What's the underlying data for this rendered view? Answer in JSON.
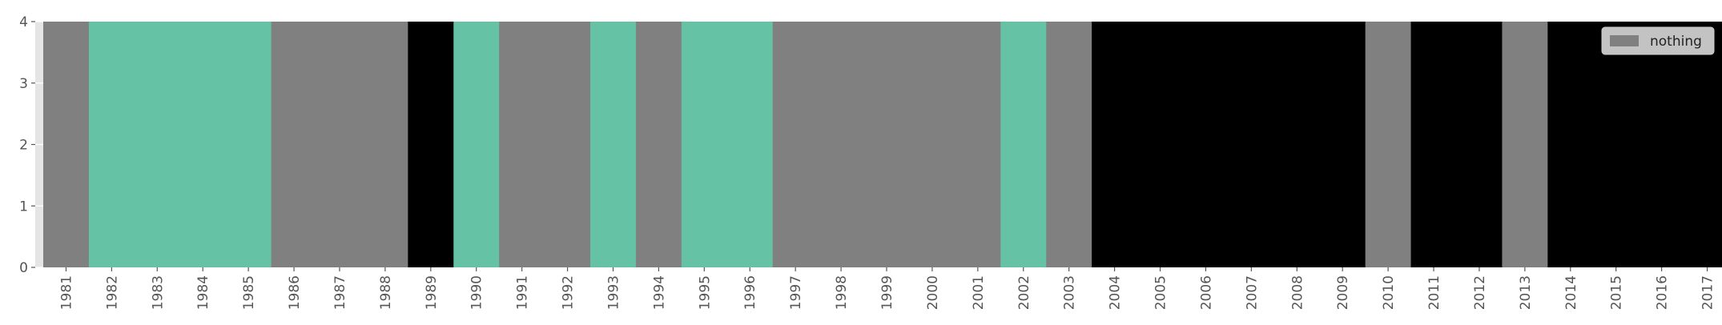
{
  "chart_data": {
    "type": "bar",
    "title": "",
    "xlabel": "",
    "ylabel": "",
    "ylim": [
      0,
      4
    ],
    "yticks": [
      0,
      1,
      2,
      3,
      4
    ],
    "grid": true,
    "legend": {
      "position": "top-right",
      "entries": [
        {
          "label": "nothing",
          "color": "#808080"
        }
      ]
    },
    "categories": [
      "1981",
      "1982",
      "1983",
      "1984",
      "1985",
      "1986",
      "1987",
      "1988",
      "1989",
      "1990",
      "1991",
      "1992",
      "1993",
      "1994",
      "1995",
      "1996",
      "1997",
      "1998",
      "1999",
      "2000",
      "2001",
      "2002",
      "2003",
      "2004",
      "2005",
      "2006",
      "2007",
      "2008",
      "2009",
      "2010",
      "2011",
      "2012",
      "2013",
      "2014",
      "2015",
      "2016",
      "2017"
    ],
    "values": [
      4,
      4,
      4,
      4,
      4,
      4,
      4,
      4,
      4,
      4,
      4,
      4,
      4,
      4,
      4,
      4,
      4,
      4,
      4,
      4,
      4,
      4,
      4,
      4,
      4,
      4,
      4,
      4,
      4,
      4,
      4,
      4,
      4,
      4,
      4,
      4,
      4
    ],
    "colors": [
      "#808080",
      "#66c2a5",
      "#66c2a5",
      "#66c2a5",
      "#66c2a5",
      "#808080",
      "#808080",
      "#808080",
      "#000000",
      "#66c2a5",
      "#808080",
      "#808080",
      "#66c2a5",
      "#808080",
      "#66c2a5",
      "#66c2a5",
      "#808080",
      "#808080",
      "#808080",
      "#808080",
      "#808080",
      "#66c2a5",
      "#808080",
      "#000000",
      "#000000",
      "#000000",
      "#000000",
      "#000000",
      "#000000",
      "#808080",
      "#000000",
      "#000000",
      "#808080",
      "#000000",
      "#000000",
      "#000000",
      "#000000"
    ],
    "palette": {
      "axes_bg": "#e5e5e5",
      "grid": "#ffffff",
      "tick_text": "#555555"
    }
  }
}
